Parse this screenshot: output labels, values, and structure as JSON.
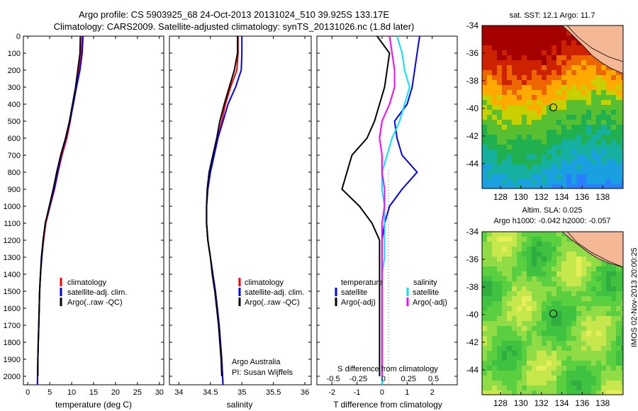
{
  "header": {
    "title_line1": "Argo profile: CS 5903925_68 24-Oct-2013 20131024_510 39.925S 133.17E",
    "title_line2": "Climatology: CARS2009. Satellite-adjusted climatology: synTS_20131026.nc (1.8d later)"
  },
  "colors": {
    "climatology": "#ff0000",
    "satellite": "#0000ff",
    "argo": "#000000",
    "salinity_satellite": "#00e5ff",
    "salinity_argo": "#ff00ff",
    "land": "#f5b896",
    "sst_warm": "#a50000",
    "sst_cool": "#2a7fff",
    "sla_mid": "#3fcf3f"
  },
  "side_text": {
    "argo_line": "Argo Australia",
    "pi_line": "PI: Susan Wijffels",
    "stamp": "IMOS 02-Nov-2013 20:00:25"
  },
  "chart_data": [
    {
      "type": "line",
      "panel": "temperature",
      "xlabel": "temperature (deg C)",
      "ylabel": "",
      "xlim": [
        -1,
        31
      ],
      "ylim": [
        2050,
        0
      ],
      "xticks": [
        0,
        5,
        10,
        15,
        20,
        25,
        30
      ],
      "yticks": [
        0,
        100,
        200,
        300,
        400,
        500,
        600,
        700,
        800,
        900,
        1000,
        1100,
        1200,
        1300,
        1400,
        1500,
        1600,
        1700,
        1800,
        1900,
        2000
      ],
      "legend": [
        "climatology",
        "satellite-adj. clim.",
        "Argo(..raw -QC)"
      ],
      "series": [
        {
          "name": "climatology",
          "color": "#ff0000",
          "x": [
            12.4,
            12.2,
            11.7,
            11.0,
            10.3,
            9.7,
            8.9,
            7.8,
            6.9,
            6.1,
            5.1,
            4.1,
            3.6,
            3.2,
            2.9,
            2.7,
            2.6,
            2.5,
            2.4,
            2.3,
            2.2
          ],
          "y": [
            0,
            100,
            200,
            300,
            400,
            500,
            600,
            700,
            800,
            900,
            1000,
            1100,
            1200,
            1300,
            1400,
            1500,
            1600,
            1700,
            1800,
            1900,
            2050
          ]
        },
        {
          "name": "satellite-adj. clim.",
          "color": "#0000ff",
          "x": [
            12.6,
            12.4,
            11.9,
            11.1,
            10.4,
            9.6,
            8.7,
            7.6,
            6.8,
            6.0,
            5.0,
            4.0,
            3.5,
            3.2,
            2.9,
            2.7,
            2.6,
            2.5,
            2.4,
            2.3,
            2.2
          ],
          "y": [
            0,
            100,
            200,
            300,
            400,
            500,
            600,
            700,
            800,
            900,
            1000,
            1100,
            1200,
            1300,
            1400,
            1500,
            1600,
            1700,
            1800,
            1900,
            2050
          ]
        },
        {
          "name": "Argo(..raw -QC)",
          "color": "#000000",
          "x": [
            12.0,
            11.9,
            11.4,
            10.9,
            10.2,
            9.5,
            8.6,
            7.5,
            6.6,
            5.8,
            4.9,
            4.0,
            3.5,
            3.1,
            2.9,
            2.7,
            2.6,
            2.5,
            2.4,
            2.3,
            2.3
          ],
          "y": [
            0,
            100,
            200,
            300,
            400,
            500,
            600,
            700,
            800,
            900,
            1000,
            1100,
            1200,
            1300,
            1400,
            1500,
            1600,
            1700,
            1800,
            1900,
            2000
          ]
        }
      ]
    },
    {
      "type": "line",
      "panel": "salinity",
      "xlabel": "salinity",
      "ylabel": "",
      "xlim": [
        33.85,
        36.1
      ],
      "ylim": [
        2050,
        0
      ],
      "xticks": [
        34,
        34.5,
        35,
        35.5,
        36
      ],
      "legend": [
        "climatology",
        "satellite-adj. clim.",
        "Argo(..raw -QC)"
      ],
      "series": [
        {
          "name": "climatology",
          "color": "#ff0000",
          "x": [
            34.94,
            34.94,
            34.92,
            34.82,
            34.74,
            34.68,
            34.62,
            34.56,
            34.5,
            34.46,
            34.44,
            34.44,
            34.46,
            34.5,
            34.54,
            34.58,
            34.61,
            34.64,
            34.66,
            34.68,
            34.7
          ],
          "y": [
            0,
            100,
            200,
            300,
            400,
            500,
            600,
            700,
            800,
            900,
            1000,
            1100,
            1200,
            1300,
            1400,
            1500,
            1600,
            1700,
            1800,
            1900,
            2050
          ]
        },
        {
          "name": "satellite-adj. clim.",
          "color": "#0000ff",
          "x": [
            35.0,
            35.0,
            34.99,
            34.9,
            34.78,
            34.7,
            34.62,
            34.56,
            34.5,
            34.46,
            34.44,
            34.44,
            34.46,
            34.5,
            34.54,
            34.58,
            34.61,
            34.64,
            34.66,
            34.68,
            34.7
          ],
          "y": [
            0,
            100,
            200,
            300,
            400,
            500,
            600,
            700,
            800,
            900,
            1000,
            1100,
            1200,
            1300,
            1400,
            1500,
            1600,
            1700,
            1800,
            1900,
            2050
          ]
        },
        {
          "name": "Argo(..raw -QC)",
          "color": "#000000",
          "x": [
            34.93,
            34.93,
            34.88,
            34.8,
            34.72,
            34.65,
            34.6,
            34.54,
            34.48,
            34.45,
            34.44,
            34.44,
            34.46,
            34.5,
            34.53,
            34.57,
            34.6,
            34.63,
            34.65,
            34.67,
            34.68
          ],
          "y": [
            0,
            100,
            200,
            300,
            400,
            500,
            600,
            700,
            800,
            900,
            1000,
            1100,
            1200,
            1300,
            1400,
            1500,
            1600,
            1700,
            1800,
            1900,
            2000
          ]
        }
      ]
    },
    {
      "type": "line",
      "panel": "difference",
      "xlabel": "T difference from climatology",
      "top_label": "S difference from climatology",
      "xlim": [
        -2.6,
        3.0
      ],
      "ylim": [
        2050,
        0
      ],
      "xticks": [
        -2,
        -1,
        0,
        1,
        2
      ],
      "top_ticks": [
        "-0.5",
        "-0.25",
        "0",
        "0.25",
        "0.5"
      ],
      "legend_headers": [
        "temperature",
        "salinity"
      ],
      "legend": [
        "satellite",
        "Argo(-adj)",
        "satellite",
        "Argo(-adj)"
      ],
      "series": [
        {
          "name": "satellite",
          "group": "temperature",
          "color": "#0000ff",
          "x": [
            1.5,
            1.4,
            1.3,
            1.2,
            1.0,
            0.5,
            0.6,
            0.8,
            1.4,
            0.8,
            0.3,
            0.1,
            0.0,
            0.0,
            0.0,
            0.0,
            0.0,
            0.0,
            0.0,
            0.0,
            0.0
          ],
          "y": [
            0,
            100,
            200,
            300,
            400,
            500,
            600,
            700,
            800,
            900,
            1000,
            1100,
            1200,
            1300,
            1400,
            1500,
            1600,
            1700,
            1800,
            1900,
            2050
          ]
        },
        {
          "name": "Argo(-adj)",
          "group": "temperature",
          "color": "#000000",
          "x": [
            -0.2,
            0.3,
            0.2,
            0.1,
            -0.1,
            -0.3,
            -0.6,
            -1.2,
            -1.4,
            -1.6,
            -0.9,
            -0.4,
            -0.1,
            -0.1,
            -0.1,
            -0.1,
            -0.1,
            -0.1,
            -0.1,
            -0.1,
            -0.1
          ],
          "y": [
            0,
            100,
            200,
            300,
            400,
            500,
            600,
            700,
            800,
            900,
            1000,
            1100,
            1200,
            1300,
            1400,
            1500,
            1600,
            1700,
            1800,
            1900,
            2000
          ]
        },
        {
          "name": "satellite",
          "group": "salinity",
          "color": "#00e5ff",
          "x": [
            0.6,
            0.8,
            0.9,
            1.1,
            0.9,
            0.7,
            0.4,
            0.2,
            0.0,
            0.0,
            0.1,
            0.1,
            0.1,
            0.1,
            0.0,
            0.0,
            0.0,
            0.0,
            0.0,
            0.0,
            0.0
          ],
          "y": [
            0,
            100,
            200,
            300,
            400,
            500,
            600,
            700,
            800,
            900,
            1000,
            1100,
            1200,
            1300,
            1400,
            1500,
            1600,
            1700,
            1800,
            1900,
            2050
          ]
        },
        {
          "name": "Argo(-adj)",
          "group": "salinity",
          "color": "#ff00ff",
          "x": [
            0.3,
            0.4,
            0.5,
            0.5,
            0.3,
            0.0,
            -0.1,
            0.0,
            0.0,
            0.1,
            0.1,
            0.0,
            0.0,
            0.0,
            0.0,
            0.0,
            0.0,
            0.0,
            0.0,
            0.0,
            0.0
          ],
          "y": [
            0,
            100,
            200,
            300,
            400,
            500,
            600,
            700,
            800,
            900,
            1000,
            1100,
            1200,
            1300,
            1400,
            1500,
            1600,
            1700,
            1800,
            1900,
            2000
          ]
        }
      ]
    },
    {
      "type": "heatmap",
      "panel": "sst_map",
      "title": "sat. SST: 12.1 Argo: 11.7",
      "xlim": [
        126.2,
        140
      ],
      "ylim": [
        -45.8,
        -34
      ],
      "xticks": [
        128,
        130,
        132,
        134,
        136,
        138
      ],
      "yticks": [
        -34,
        -36,
        -38,
        -40,
        -42,
        -44
      ],
      "profile_location": [
        133.17,
        -39.925
      ]
    },
    {
      "type": "heatmap",
      "panel": "sla_map",
      "title_line1": "Altim. SLA: 0.025",
      "title_line2": "Argo h1000: -0.042 h2000: -0.057",
      "xlim": [
        126.2,
        140
      ],
      "ylim": [
        -45.8,
        -34
      ],
      "xticks": [
        128,
        130,
        132,
        134,
        136,
        138
      ],
      "yticks": [
        -34,
        -36,
        -38,
        -40,
        -42,
        -44
      ],
      "profile_location": [
        133.17,
        -39.925
      ]
    }
  ]
}
